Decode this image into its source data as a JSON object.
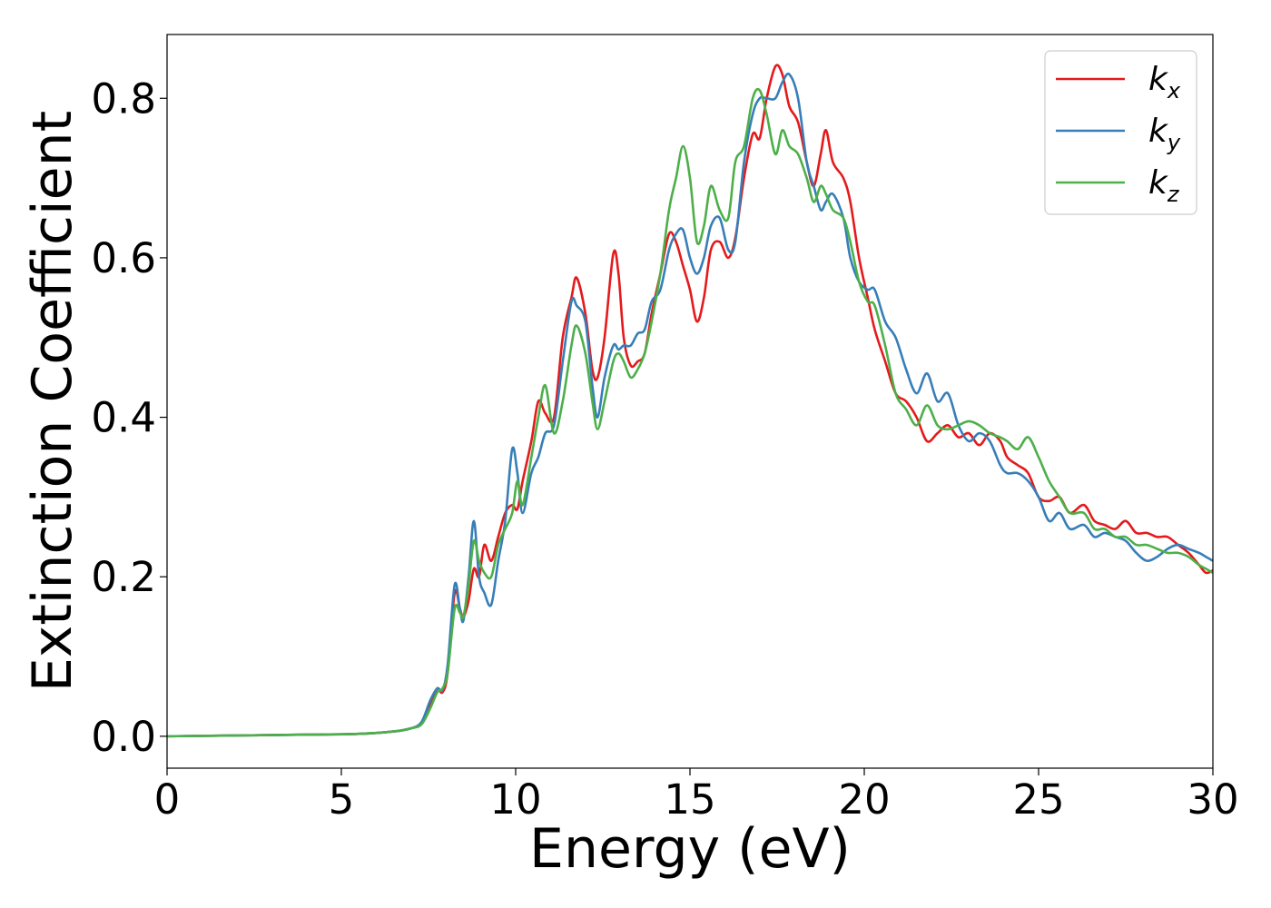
{
  "chart_data": {
    "type": "line",
    "title": "",
    "xlabel": "Energy (eV)",
    "ylabel": "Extinction Coefficient",
    "xlim": [
      0,
      30
    ],
    "ylim": [
      -0.04,
      0.88
    ],
    "xticks": [
      0,
      5,
      10,
      15,
      20,
      25,
      30
    ],
    "yticks": [
      0.0,
      0.2,
      0.4,
      0.6,
      0.8
    ],
    "xtick_labels": [
      "0",
      "5",
      "10",
      "15",
      "20",
      "25",
      "30"
    ],
    "ytick_labels": [
      "0.0",
      "0.2",
      "0.4",
      "0.6",
      "0.8"
    ],
    "grid": false,
    "legend_position": "top-right",
    "series": [
      {
        "name": "kx",
        "label_base": "k",
        "label_sub": "x",
        "color": "#e41a1c",
        "points": [
          [
            0,
            0.0
          ],
          [
            2,
            0.001
          ],
          [
            4,
            0.002
          ],
          [
            5.5,
            0.003
          ],
          [
            6.5,
            0.006
          ],
          [
            7.0,
            0.01
          ],
          [
            7.3,
            0.016
          ],
          [
            7.55,
            0.04
          ],
          [
            7.75,
            0.06
          ],
          [
            7.9,
            0.055
          ],
          [
            8.05,
            0.08
          ],
          [
            8.25,
            0.18
          ],
          [
            8.4,
            0.16
          ],
          [
            8.5,
            0.15
          ],
          [
            8.65,
            0.17
          ],
          [
            8.8,
            0.21
          ],
          [
            8.95,
            0.2
          ],
          [
            9.1,
            0.24
          ],
          [
            9.3,
            0.22
          ],
          [
            9.5,
            0.25
          ],
          [
            9.7,
            0.28
          ],
          [
            9.9,
            0.29
          ],
          [
            10.05,
            0.285
          ],
          [
            10.2,
            0.32
          ],
          [
            10.45,
            0.37
          ],
          [
            10.65,
            0.42
          ],
          [
            10.85,
            0.405
          ],
          [
            11.1,
            0.4
          ],
          [
            11.35,
            0.5
          ],
          [
            11.6,
            0.55
          ],
          [
            11.75,
            0.575
          ],
          [
            12.0,
            0.53
          ],
          [
            12.2,
            0.46
          ],
          [
            12.35,
            0.45
          ],
          [
            12.55,
            0.5
          ],
          [
            12.8,
            0.605
          ],
          [
            12.95,
            0.58
          ],
          [
            13.1,
            0.5
          ],
          [
            13.3,
            0.465
          ],
          [
            13.5,
            0.47
          ],
          [
            13.7,
            0.48
          ],
          [
            13.9,
            0.53
          ],
          [
            14.15,
            0.58
          ],
          [
            14.4,
            0.63
          ],
          [
            14.6,
            0.62
          ],
          [
            14.8,
            0.59
          ],
          [
            15.0,
            0.56
          ],
          [
            15.2,
            0.52
          ],
          [
            15.4,
            0.55
          ],
          [
            15.6,
            0.61
          ],
          [
            15.85,
            0.62
          ],
          [
            16.1,
            0.6
          ],
          [
            16.3,
            0.625
          ],
          [
            16.55,
            0.7
          ],
          [
            16.8,
            0.755
          ],
          [
            17.0,
            0.75
          ],
          [
            17.2,
            0.8
          ],
          [
            17.45,
            0.84
          ],
          [
            17.65,
            0.83
          ],
          [
            17.85,
            0.79
          ],
          [
            18.1,
            0.77
          ],
          [
            18.35,
            0.72
          ],
          [
            18.55,
            0.69
          ],
          [
            18.75,
            0.73
          ],
          [
            18.9,
            0.76
          ],
          [
            19.1,
            0.72
          ],
          [
            19.4,
            0.7
          ],
          [
            19.6,
            0.67
          ],
          [
            19.85,
            0.6
          ],
          [
            20.1,
            0.55
          ],
          [
            20.3,
            0.51
          ],
          [
            20.6,
            0.47
          ],
          [
            20.9,
            0.43
          ],
          [
            21.2,
            0.42
          ],
          [
            21.5,
            0.4
          ],
          [
            21.8,
            0.37
          ],
          [
            22.1,
            0.38
          ],
          [
            22.4,
            0.39
          ],
          [
            22.7,
            0.375
          ],
          [
            23.0,
            0.38
          ],
          [
            23.3,
            0.365
          ],
          [
            23.6,
            0.38
          ],
          [
            23.9,
            0.37
          ],
          [
            24.1,
            0.35
          ],
          [
            24.4,
            0.34
          ],
          [
            24.7,
            0.33
          ],
          [
            25.0,
            0.3
          ],
          [
            25.3,
            0.295
          ],
          [
            25.6,
            0.3
          ],
          [
            25.9,
            0.28
          ],
          [
            26.3,
            0.29
          ],
          [
            26.6,
            0.27
          ],
          [
            26.9,
            0.265
          ],
          [
            27.2,
            0.26
          ],
          [
            27.5,
            0.27
          ],
          [
            27.8,
            0.255
          ],
          [
            28.1,
            0.255
          ],
          [
            28.4,
            0.25
          ],
          [
            28.7,
            0.25
          ],
          [
            29.0,
            0.24
          ],
          [
            29.3,
            0.23
          ],
          [
            29.6,
            0.215
          ],
          [
            29.8,
            0.205
          ],
          [
            30,
            0.208
          ]
        ]
      },
      {
        "name": "ky",
        "label_base": "k",
        "label_sub": "y",
        "color": "#377eb8",
        "points": [
          [
            0,
            0.0
          ],
          [
            2,
            0.001
          ],
          [
            4,
            0.002
          ],
          [
            5.5,
            0.003
          ],
          [
            6.5,
            0.006
          ],
          [
            7.0,
            0.01
          ],
          [
            7.3,
            0.018
          ],
          [
            7.55,
            0.045
          ],
          [
            7.75,
            0.06
          ],
          [
            7.9,
            0.058
          ],
          [
            8.05,
            0.09
          ],
          [
            8.25,
            0.19
          ],
          [
            8.4,
            0.16
          ],
          [
            8.5,
            0.145
          ],
          [
            8.65,
            0.2
          ],
          [
            8.8,
            0.27
          ],
          [
            8.95,
            0.2
          ],
          [
            9.1,
            0.18
          ],
          [
            9.3,
            0.165
          ],
          [
            9.5,
            0.22
          ],
          [
            9.7,
            0.27
          ],
          [
            9.9,
            0.36
          ],
          [
            10.05,
            0.33
          ],
          [
            10.2,
            0.28
          ],
          [
            10.45,
            0.33
          ],
          [
            10.65,
            0.35
          ],
          [
            10.85,
            0.38
          ],
          [
            11.1,
            0.39
          ],
          [
            11.35,
            0.47
          ],
          [
            11.6,
            0.545
          ],
          [
            11.75,
            0.54
          ],
          [
            12.0,
            0.52
          ],
          [
            12.2,
            0.44
          ],
          [
            12.35,
            0.4
          ],
          [
            12.55,
            0.45
          ],
          [
            12.8,
            0.49
          ],
          [
            12.95,
            0.485
          ],
          [
            13.1,
            0.49
          ],
          [
            13.3,
            0.49
          ],
          [
            13.5,
            0.505
          ],
          [
            13.7,
            0.51
          ],
          [
            13.9,
            0.545
          ],
          [
            14.15,
            0.56
          ],
          [
            14.4,
            0.61
          ],
          [
            14.6,
            0.63
          ],
          [
            14.8,
            0.635
          ],
          [
            15.0,
            0.6
          ],
          [
            15.2,
            0.58
          ],
          [
            15.4,
            0.6
          ],
          [
            15.6,
            0.64
          ],
          [
            15.85,
            0.65
          ],
          [
            16.1,
            0.61
          ],
          [
            16.3,
            0.62
          ],
          [
            16.55,
            0.72
          ],
          [
            16.8,
            0.78
          ],
          [
            17.0,
            0.8
          ],
          [
            17.2,
            0.8
          ],
          [
            17.45,
            0.8
          ],
          [
            17.65,
            0.82
          ],
          [
            17.85,
            0.83
          ],
          [
            18.1,
            0.8
          ],
          [
            18.35,
            0.72
          ],
          [
            18.55,
            0.69
          ],
          [
            18.75,
            0.66
          ],
          [
            18.9,
            0.67
          ],
          [
            19.1,
            0.68
          ],
          [
            19.4,
            0.65
          ],
          [
            19.6,
            0.6
          ],
          [
            19.85,
            0.57
          ],
          [
            20.1,
            0.56
          ],
          [
            20.3,
            0.56
          ],
          [
            20.6,
            0.52
          ],
          [
            20.9,
            0.5
          ],
          [
            21.2,
            0.46
          ],
          [
            21.5,
            0.43
          ],
          [
            21.8,
            0.455
          ],
          [
            22.1,
            0.42
          ],
          [
            22.4,
            0.43
          ],
          [
            22.7,
            0.39
          ],
          [
            23.0,
            0.37
          ],
          [
            23.3,
            0.38
          ],
          [
            23.6,
            0.37
          ],
          [
            23.9,
            0.34
          ],
          [
            24.1,
            0.33
          ],
          [
            24.4,
            0.33
          ],
          [
            24.7,
            0.32
          ],
          [
            25.0,
            0.3
          ],
          [
            25.3,
            0.27
          ],
          [
            25.6,
            0.28
          ],
          [
            25.9,
            0.26
          ],
          [
            26.3,
            0.265
          ],
          [
            26.6,
            0.25
          ],
          [
            26.9,
            0.255
          ],
          [
            27.2,
            0.25
          ],
          [
            27.5,
            0.245
          ],
          [
            27.8,
            0.23
          ],
          [
            28.1,
            0.22
          ],
          [
            28.4,
            0.225
          ],
          [
            28.7,
            0.235
          ],
          [
            29.0,
            0.24
          ],
          [
            29.3,
            0.235
          ],
          [
            29.6,
            0.23
          ],
          [
            29.8,
            0.225
          ],
          [
            30,
            0.22
          ]
        ]
      },
      {
        "name": "kz",
        "label_base": "k",
        "label_sub": "z",
        "color": "#4daf4a",
        "points": [
          [
            0,
            0.0
          ],
          [
            2,
            0.001
          ],
          [
            4,
            0.002
          ],
          [
            5.5,
            0.003
          ],
          [
            6.5,
            0.006
          ],
          [
            7.0,
            0.01
          ],
          [
            7.3,
            0.015
          ],
          [
            7.55,
            0.035
          ],
          [
            7.75,
            0.055
          ],
          [
            7.9,
            0.06
          ],
          [
            8.05,
            0.08
          ],
          [
            8.25,
            0.16
          ],
          [
            8.4,
            0.155
          ],
          [
            8.5,
            0.15
          ],
          [
            8.65,
            0.19
          ],
          [
            8.8,
            0.245
          ],
          [
            8.95,
            0.22
          ],
          [
            9.1,
            0.205
          ],
          [
            9.3,
            0.2
          ],
          [
            9.5,
            0.24
          ],
          [
            9.7,
            0.26
          ],
          [
            9.9,
            0.28
          ],
          [
            10.05,
            0.32
          ],
          [
            10.2,
            0.29
          ],
          [
            10.45,
            0.35
          ],
          [
            10.65,
            0.4
          ],
          [
            10.85,
            0.44
          ],
          [
            11.1,
            0.38
          ],
          [
            11.35,
            0.42
          ],
          [
            11.6,
            0.49
          ],
          [
            11.75,
            0.515
          ],
          [
            12.0,
            0.48
          ],
          [
            12.2,
            0.42
          ],
          [
            12.35,
            0.385
          ],
          [
            12.55,
            0.42
          ],
          [
            12.8,
            0.47
          ],
          [
            12.95,
            0.48
          ],
          [
            13.1,
            0.47
          ],
          [
            13.3,
            0.45
          ],
          [
            13.5,
            0.46
          ],
          [
            13.7,
            0.48
          ],
          [
            13.9,
            0.52
          ],
          [
            14.15,
            0.58
          ],
          [
            14.4,
            0.66
          ],
          [
            14.6,
            0.7
          ],
          [
            14.8,
            0.74
          ],
          [
            15.0,
            0.7
          ],
          [
            15.2,
            0.62
          ],
          [
            15.4,
            0.64
          ],
          [
            15.6,
            0.69
          ],
          [
            15.85,
            0.66
          ],
          [
            16.1,
            0.65
          ],
          [
            16.3,
            0.72
          ],
          [
            16.55,
            0.74
          ],
          [
            16.8,
            0.8
          ],
          [
            17.0,
            0.81
          ],
          [
            17.2,
            0.78
          ],
          [
            17.45,
            0.73
          ],
          [
            17.65,
            0.76
          ],
          [
            17.85,
            0.74
          ],
          [
            18.1,
            0.73
          ],
          [
            18.35,
            0.7
          ],
          [
            18.55,
            0.67
          ],
          [
            18.75,
            0.69
          ],
          [
            18.9,
            0.68
          ],
          [
            19.1,
            0.66
          ],
          [
            19.4,
            0.65
          ],
          [
            19.6,
            0.62
          ],
          [
            19.85,
            0.57
          ],
          [
            20.1,
            0.545
          ],
          [
            20.3,
            0.54
          ],
          [
            20.6,
            0.49
          ],
          [
            20.9,
            0.43
          ],
          [
            21.2,
            0.41
          ],
          [
            21.5,
            0.39
          ],
          [
            21.8,
            0.415
          ],
          [
            22.1,
            0.39
          ],
          [
            22.4,
            0.385
          ],
          [
            22.7,
            0.39
          ],
          [
            23.0,
            0.395
          ],
          [
            23.3,
            0.39
          ],
          [
            23.6,
            0.38
          ],
          [
            23.9,
            0.375
          ],
          [
            24.1,
            0.37
          ],
          [
            24.4,
            0.36
          ],
          [
            24.7,
            0.375
          ],
          [
            25.0,
            0.35
          ],
          [
            25.3,
            0.32
          ],
          [
            25.6,
            0.3
          ],
          [
            25.9,
            0.28
          ],
          [
            26.3,
            0.28
          ],
          [
            26.6,
            0.26
          ],
          [
            26.9,
            0.26
          ],
          [
            27.2,
            0.25
          ],
          [
            27.5,
            0.25
          ],
          [
            27.8,
            0.24
          ],
          [
            28.1,
            0.24
          ],
          [
            28.4,
            0.235
          ],
          [
            28.7,
            0.23
          ],
          [
            29.0,
            0.23
          ],
          [
            29.3,
            0.225
          ],
          [
            29.6,
            0.215
          ],
          [
            29.8,
            0.21
          ],
          [
            30,
            0.205
          ]
        ]
      }
    ]
  }
}
